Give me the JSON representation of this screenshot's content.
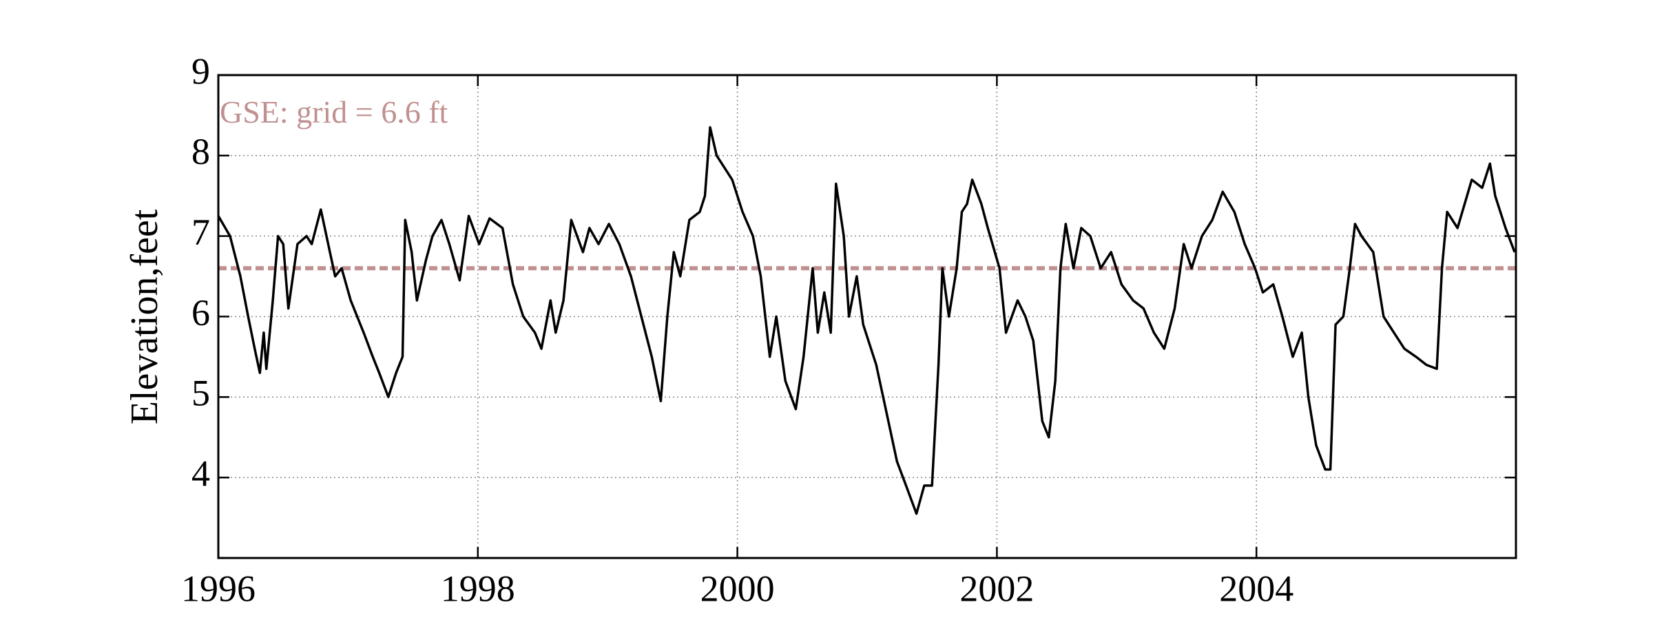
{
  "chart_data": {
    "type": "line",
    "ylabel": "Elevation,feet",
    "annotation": "GSE: grid = 6.6 ft",
    "xlim": [
      1996,
      2006
    ],
    "ylim": [
      3,
      9
    ],
    "xticks": [
      1996,
      1998,
      2000,
      2002,
      2004
    ],
    "yticks": [
      4,
      5,
      6,
      7,
      8,
      9
    ],
    "grid": true,
    "reference_line": {
      "value": 6.6,
      "color": "#c09090"
    },
    "x": [
      1996.0,
      1996.09,
      1996.17,
      1996.23,
      1996.28,
      1996.32,
      1996.35,
      1996.37,
      1996.42,
      1996.46,
      1996.5,
      1996.54,
      1996.61,
      1996.68,
      1996.72,
      1996.79,
      1996.86,
      1996.9,
      1996.95,
      1997.02,
      1997.12,
      1997.19,
      1997.24,
      1997.31,
      1997.37,
      1997.42,
      1997.44,
      1997.49,
      1997.53,
      1997.6,
      1997.65,
      1997.72,
      1997.78,
      1997.86,
      1997.93,
      1998.01,
      1998.09,
      1998.19,
      1998.27,
      1998.35,
      1998.44,
      1998.49,
      1998.56,
      1998.6,
      1998.66,
      1998.72,
      1998.81,
      1998.86,
      1998.93,
      1999.01,
      1999.09,
      1999.18,
      1999.26,
      1999.34,
      1999.41,
      1999.46,
      1999.51,
      1999.56,
      1999.63,
      1999.71,
      1999.75,
      1999.79,
      1999.84,
      1999.96,
      2000.04,
      2000.12,
      2000.18,
      2000.25,
      2000.3,
      2000.37,
      2000.45,
      2000.51,
      2000.58,
      2000.62,
      2000.67,
      2000.72,
      2000.76,
      2000.82,
      2000.86,
      2000.92,
      2000.97,
      2001.07,
      2001.15,
      2001.23,
      2001.3,
      2001.38,
      2001.44,
      2001.5,
      2001.55,
      2001.58,
      2001.63,
      2001.69,
      2001.73,
      2001.77,
      2001.81,
      2001.88,
      2001.93,
      2002.02,
      2002.07,
      2002.16,
      2002.22,
      2002.28,
      2002.35,
      2002.4,
      2002.45,
      2002.49,
      2002.53,
      2002.59,
      2002.65,
      2002.72,
      2002.8,
      2002.88,
      2002.96,
      2003.05,
      2003.13,
      2003.21,
      2003.29,
      2003.37,
      2003.44,
      2003.5,
      2003.58,
      2003.66,
      2003.74,
      2003.83,
      2003.91,
      2003.99,
      2004.05,
      2004.13,
      2004.2,
      2004.28,
      2004.35,
      2004.4,
      2004.46,
      2004.53,
      2004.57,
      2004.61,
      2004.67,
      2004.72,
      2004.76,
      2004.81,
      2004.9,
      2004.98,
      2005.06,
      2005.14,
      2005.23,
      2005.31,
      2005.39,
      2005.43,
      2005.47,
      2005.55,
      2005.66,
      2005.74,
      2005.8,
      2005.84,
      2005.92,
      2005.99
    ],
    "series": [
      {
        "color": "#000000",
        "values": [
          7.25,
          7.0,
          6.5,
          6.0,
          5.6,
          5.3,
          5.8,
          5.35,
          6.2,
          7.0,
          6.9,
          6.1,
          6.9,
          7.0,
          6.9,
          7.33,
          6.8,
          6.5,
          6.6,
          6.2,
          5.8,
          5.5,
          5.3,
          5.0,
          5.3,
          5.5,
          7.2,
          6.8,
          6.2,
          6.7,
          7.0,
          7.2,
          6.9,
          6.45,
          7.25,
          6.9,
          7.22,
          7.1,
          6.4,
          6.0,
          5.8,
          5.6,
          6.2,
          5.8,
          6.2,
          7.2,
          6.8,
          7.1,
          6.9,
          7.15,
          6.9,
          6.5,
          6.0,
          5.5,
          4.95,
          6.0,
          6.8,
          6.5,
          7.2,
          7.3,
          7.5,
          8.35,
          8.0,
          7.7,
          7.3,
          7.0,
          6.5,
          5.5,
          6.0,
          5.2,
          4.85,
          5.5,
          6.6,
          5.8,
          6.3,
          5.8,
          7.65,
          7.0,
          6.0,
          6.5,
          5.9,
          5.4,
          4.8,
          4.2,
          3.9,
          3.55,
          3.9,
          3.9,
          5.4,
          6.6,
          6.0,
          6.6,
          7.3,
          7.4,
          7.7,
          7.4,
          7.1,
          6.6,
          5.8,
          6.2,
          6.0,
          5.7,
          4.7,
          4.5,
          5.2,
          6.6,
          7.15,
          6.6,
          7.1,
          7.0,
          6.6,
          6.8,
          6.4,
          6.2,
          6.1,
          5.8,
          5.6,
          6.1,
          6.9,
          6.6,
          7.0,
          7.2,
          7.55,
          7.3,
          6.9,
          6.6,
          6.3,
          6.4,
          6.0,
          5.5,
          5.8,
          5.0,
          4.4,
          4.1,
          4.1,
          5.9,
          6.0,
          6.6,
          7.15,
          7.0,
          6.8,
          6.0,
          5.8,
          5.6,
          5.5,
          5.4,
          5.35,
          6.6,
          7.3,
          7.1,
          7.7,
          7.6,
          7.9,
          7.5,
          7.1,
          6.8
        ]
      }
    ]
  }
}
